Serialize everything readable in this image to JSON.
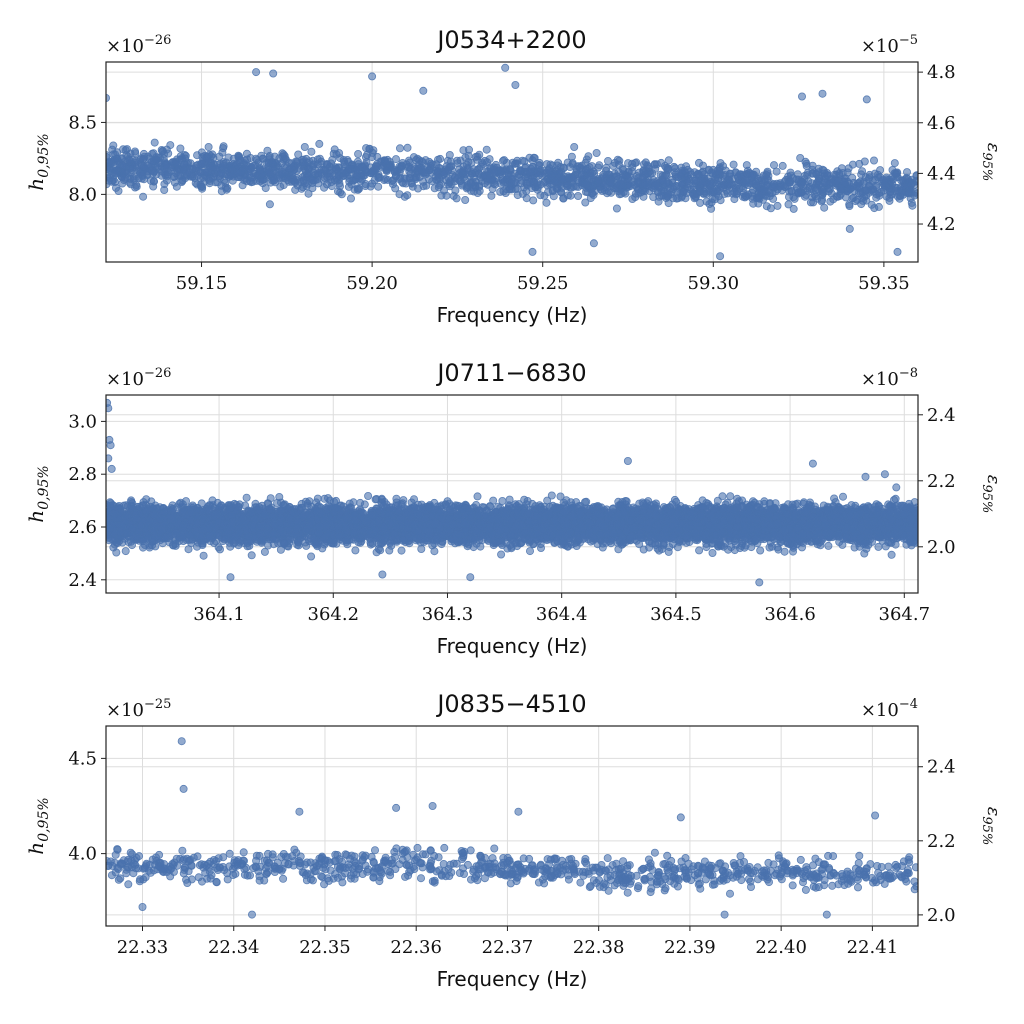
{
  "chart_data": [
    {
      "type": "scatter",
      "title": "J0534+2200",
      "xlabel": "Frequency (Hz)",
      "ylabel": "h_{0,95%}",
      "ylabel_main": "h",
      "ylabel_sub": "0,95%",
      "ylabel_right": "ε_{95%}",
      "ylabel_right_main": "ε",
      "ylabel_right_sub": "95%",
      "multiplier_left_base": "×10",
      "multiplier_left_exp": "−26",
      "multiplier_right_base": "×10",
      "multiplier_right_exp": "−5",
      "xlim": [
        59.122,
        59.36
      ],
      "ylim": [
        7.53,
        8.92
      ],
      "ylim_right": [
        4.05,
        4.84
      ],
      "xticks": [
        59.15,
        59.2,
        59.25,
        59.3,
        59.35
      ],
      "xtick_labels": [
        "59.15",
        "59.20",
        "59.25",
        "59.30",
        "59.35"
      ],
      "yticks": [
        8.0,
        8.5
      ],
      "ytick_labels": [
        "8.0",
        "8.5"
      ],
      "yticks_right": [
        4.2,
        4.4,
        4.6,
        4.8
      ],
      "ytick_labels_right": [
        "4.2",
        "4.4",
        "4.6",
        "4.8"
      ],
      "grid": true,
      "color": "#4a72ad",
      "point_count": 2200,
      "trend": [
        [
          59.122,
          8.18
        ],
        [
          59.2,
          8.16
        ],
        [
          59.25,
          8.12
        ],
        [
          59.3,
          8.07
        ],
        [
          59.36,
          8.06
        ]
      ],
      "spread": 0.17,
      "outliers": [
        [
          59.122,
          8.67
        ],
        [
          59.166,
          8.85
        ],
        [
          59.171,
          8.84
        ],
        [
          59.2,
          8.82
        ],
        [
          59.239,
          8.88
        ],
        [
          59.242,
          8.76
        ],
        [
          59.326,
          8.68
        ],
        [
          59.332,
          8.7
        ],
        [
          59.345,
          8.66
        ],
        [
          59.215,
          8.72
        ],
        [
          59.247,
          7.6
        ],
        [
          59.302,
          7.57
        ],
        [
          59.354,
          7.6
        ],
        [
          59.34,
          7.76
        ],
        [
          59.265,
          7.66
        ]
      ]
    },
    {
      "type": "scatter",
      "title": "J0711−6830",
      "xlabel": "Frequency (Hz)",
      "ylabel": "h_{0,95%}",
      "ylabel_main": "h",
      "ylabel_sub": "0,95%",
      "ylabel_right": "ε_{95%}",
      "ylabel_right_main": "ε",
      "ylabel_right_sub": "95%",
      "multiplier_left_base": "×10",
      "multiplier_left_exp": "−26",
      "multiplier_right_base": "×10",
      "multiplier_right_exp": "−8",
      "xlim": [
        364.001,
        364.712
      ],
      "ylim": [
        2.35,
        3.1
      ],
      "ylim_right": [
        1.86,
        2.46
      ],
      "xticks": [
        364.1,
        364.2,
        364.3,
        364.4,
        364.5,
        364.6,
        364.7
      ],
      "xtick_labels": [
        "364.1",
        "364.2",
        "364.3",
        "364.4",
        "364.5",
        "364.6",
        "364.7"
      ],
      "yticks": [
        2.4,
        2.6,
        2.8,
        3.0
      ],
      "ytick_labels": [
        "2.4",
        "2.6",
        "2.8",
        "3.0"
      ],
      "yticks_right": [
        2.0,
        2.2,
        2.4
      ],
      "ytick_labels_right": [
        "2.0",
        "2.2",
        "2.4"
      ],
      "grid": true,
      "color": "#4a72ad",
      "point_count": 9000,
      "trend": [
        [
          364.001,
          2.61
        ],
        [
          364.7,
          2.61
        ]
      ],
      "spread": 0.09,
      "outliers": [
        [
          364.002,
          3.07
        ],
        [
          364.003,
          3.05
        ],
        [
          364.004,
          2.93
        ],
        [
          364.005,
          2.91
        ],
        [
          364.003,
          2.86
        ],
        [
          364.006,
          2.82
        ],
        [
          364.666,
          2.79
        ],
        [
          364.683,
          2.8
        ],
        [
          364.458,
          2.85
        ],
        [
          364.693,
          2.75
        ],
        [
          364.62,
          2.84
        ],
        [
          364.243,
          2.42
        ],
        [
          364.573,
          2.39
        ],
        [
          364.11,
          2.41
        ],
        [
          364.32,
          2.41
        ]
      ]
    },
    {
      "type": "scatter",
      "title": "J0835−4510",
      "xlabel": "Frequency (Hz)",
      "ylabel": "h_{0,95%}",
      "ylabel_main": "h",
      "ylabel_sub": "0,95%",
      "ylabel_right": "ε_{95%}",
      "ylabel_right_main": "ε",
      "ylabel_right_sub": "95%",
      "multiplier_left_base": "×10",
      "multiplier_left_exp": "−25",
      "multiplier_right_base": "×10",
      "multiplier_right_exp": "−4",
      "xlim": [
        22.326,
        22.415
      ],
      "ylim": [
        3.62,
        4.67
      ],
      "ylim_right": [
        1.97,
        2.51
      ],
      "xticks": [
        22.33,
        22.34,
        22.35,
        22.36,
        22.37,
        22.38,
        22.39,
        22.4,
        22.41
      ],
      "xtick_labels": [
        "22.33",
        "22.34",
        "22.35",
        "22.36",
        "22.37",
        "22.38",
        "22.39",
        "22.40",
        "22.41"
      ],
      "yticks": [
        4.0,
        4.5
      ],
      "ytick_labels": [
        "4.0",
        "4.5"
      ],
      "yticks_right": [
        2.0,
        2.2,
        2.4
      ],
      "ytick_labels_right": [
        "2.0",
        "2.2",
        "2.4"
      ],
      "grid": true,
      "color": "#4a72ad",
      "point_count": 900,
      "trend": [
        [
          22.326,
          3.93
        ],
        [
          22.36,
          3.94
        ],
        [
          22.38,
          3.9
        ],
        [
          22.415,
          3.89
        ]
      ],
      "spread": 0.1,
      "outliers": [
        [
          22.3343,
          4.59
        ],
        [
          22.3345,
          4.34
        ],
        [
          22.3618,
          4.25
        ],
        [
          22.3578,
          4.24
        ],
        [
          22.3472,
          4.22
        ],
        [
          22.3712,
          4.22
        ],
        [
          22.389,
          4.19
        ],
        [
          22.4103,
          4.2
        ],
        [
          22.342,
          3.68
        ],
        [
          22.3938,
          3.68
        ],
        [
          22.405,
          3.68
        ],
        [
          22.33,
          3.72
        ]
      ]
    }
  ]
}
